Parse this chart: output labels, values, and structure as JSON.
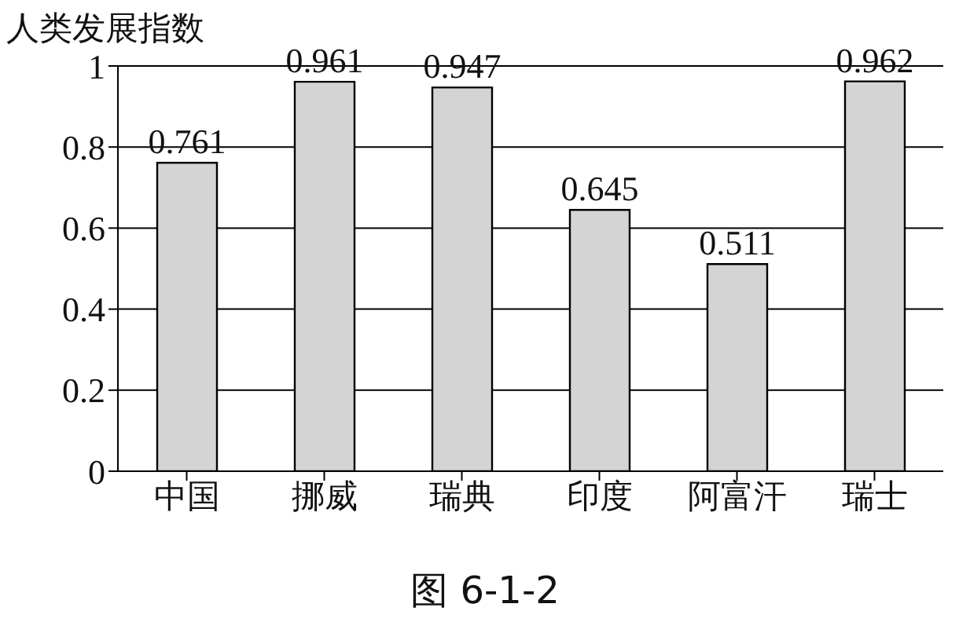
{
  "chart_data": {
    "type": "bar",
    "ylabel": "人类发展指数",
    "categories": [
      "中国",
      "挪威",
      "瑞典",
      "印度",
      "阿富汗",
      "瑞士"
    ],
    "values": [
      0.761,
      0.961,
      0.947,
      0.645,
      0.511,
      0.962
    ],
    "color": "#d4d4d4",
    "ylim": [
      0,
      1
    ],
    "yticks": [
      0,
      0.2,
      0.4,
      0.6,
      0.8,
      1
    ],
    "grid": "y",
    "data_labels": true,
    "annotations": [
      "图 6-1-2"
    ]
  }
}
